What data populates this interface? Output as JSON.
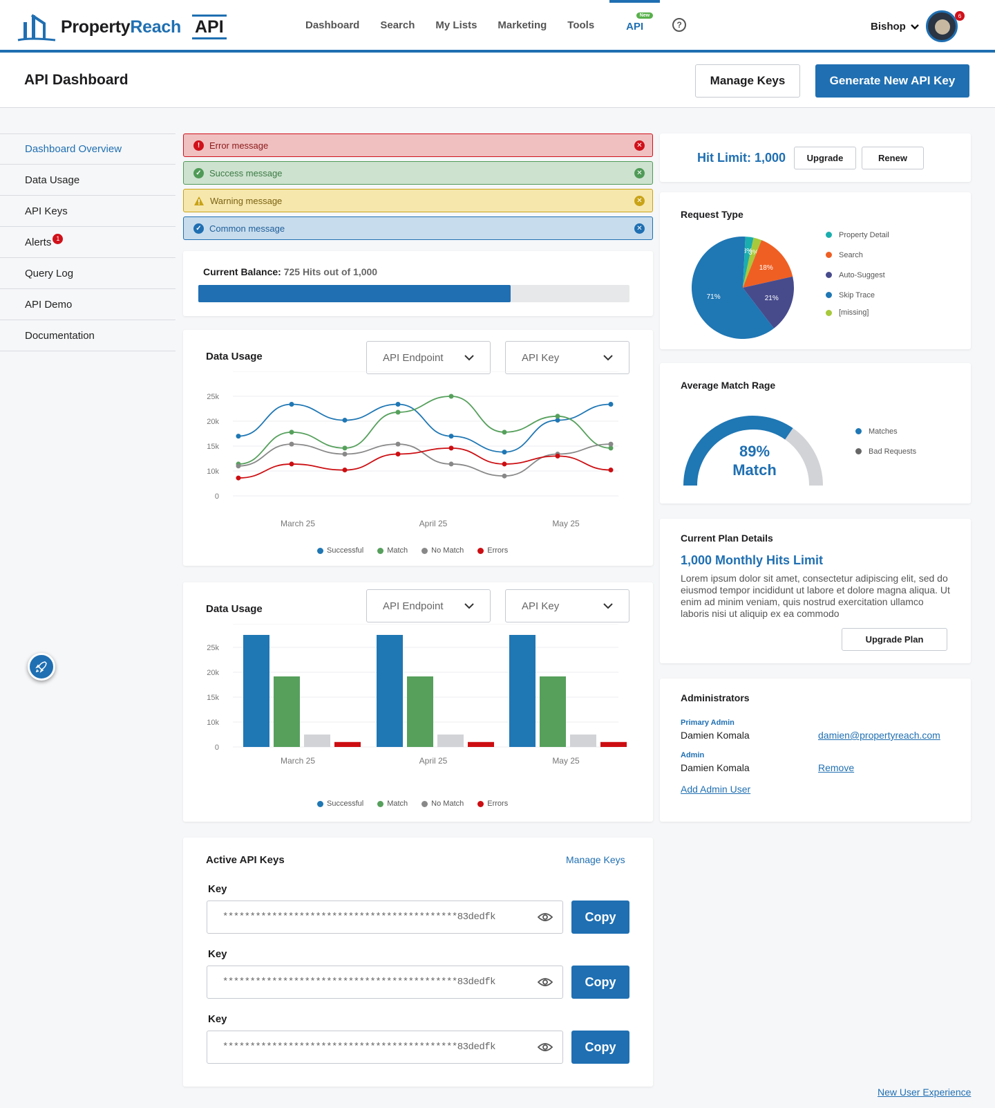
{
  "header": {
    "logo_property": "Property",
    "logo_reach": "Reach",
    "logo_api": "API",
    "nav": [
      "Dashboard",
      "Search",
      "My Lists",
      "Marketing",
      "Tools"
    ],
    "nav_api": "API",
    "nav_new_badge": "New",
    "help_glyph": "?",
    "user_name": "Bishop",
    "notification_count": "6"
  },
  "page": {
    "title": "API Dashboard",
    "manage_keys": "Manage Keys",
    "generate_key": "Generate New API Key"
  },
  "sidebar": {
    "items": [
      "Dashboard Overview",
      "Data Usage",
      "API Keys",
      "Alerts",
      "Query Log",
      "API Demo",
      "Documentation"
    ],
    "alerts_badge": "1"
  },
  "alerts": {
    "error": "Error message",
    "success": "Success message",
    "warning": "Warning message",
    "common": "Common message"
  },
  "balance": {
    "label": "Current Balance:",
    "value": "725 Hits out of 1,000",
    "fraction": 0.725
  },
  "usage_line": {
    "title": "Data Usage",
    "endpoint": "API Endpoint",
    "key": "API Key"
  },
  "usage_bar": {
    "title": "Data Usage",
    "endpoint": "API Endpoint",
    "key": "API Key"
  },
  "legend": [
    "Successful",
    "Match",
    "No Match",
    "Errors"
  ],
  "colors": {
    "primary": "#1f6fb2",
    "successful": "#1f77b4",
    "match": "#56a05c",
    "no_match": "#888888",
    "no_match_bar": "#d2d3d6",
    "errors": "#cc0e12"
  },
  "chart_data": [
    {
      "type": "line",
      "title": "Data Usage",
      "y_ticks": [
        "25k",
        "20k",
        "15k",
        "10k",
        "0"
      ],
      "x_ticks": [
        "March 25",
        "April 25",
        "May 25"
      ],
      "series": [
        {
          "name": "Successful",
          "values": [
            15000,
            23000,
            19000,
            23000,
            15000,
            11000,
            19000,
            23000
          ]
        },
        {
          "name": "Match",
          "values": [
            8000,
            16000,
            12000,
            21000,
            25000,
            16000,
            20000,
            12000
          ]
        },
        {
          "name": "No Match",
          "values": [
            7500,
            13000,
            10500,
            13000,
            8000,
            5000,
            10500,
            13000
          ]
        },
        {
          "name": "Errors",
          "values": [
            4500,
            8000,
            6500,
            10500,
            12000,
            8000,
            10000,
            6500
          ]
        }
      ]
    },
    {
      "type": "bar",
      "title": "Data Usage",
      "y_ticks": [
        "25k",
        "20k",
        "15k",
        "10k",
        "0"
      ],
      "categories": [
        "March 25",
        "April 25",
        "May 25"
      ],
      "series": [
        {
          "name": "Successful",
          "values": [
            27000,
            27000,
            27000
          ]
        },
        {
          "name": "Match",
          "values": [
            17000,
            17000,
            17000
          ]
        },
        {
          "name": "No Match",
          "values": [
            3000,
            3000,
            3000
          ]
        },
        {
          "name": "Errors",
          "values": [
            1200,
            1200,
            1200
          ]
        }
      ]
    },
    {
      "type": "pie",
      "title": "Request Type",
      "slices": [
        {
          "label": "Property Detail",
          "value": 3,
          "text": "3%",
          "color": "#1aaeae"
        },
        {
          "label": "Search",
          "value": 18,
          "text": "18%",
          "color": "#ef5f23"
        },
        {
          "label": "Auto-Suggest",
          "value": 21,
          "text": "21%",
          "color": "#474b8c"
        },
        {
          "label": "Skip Trace",
          "value": 71,
          "text": "71%",
          "color": "#1f77b4"
        },
        {
          "label": "[missing]",
          "value": 3,
          "text": "3%",
          "color": "#a7c93b"
        }
      ]
    },
    {
      "type": "gauge",
      "title": "Average Match Rage",
      "value": 89,
      "center_value": "89%",
      "center_label": "Match",
      "legend": [
        "Matches",
        "Bad Requests"
      ]
    }
  ],
  "hit_limit": {
    "label": "Hit Limit: 1,000",
    "upgrade": "Upgrade",
    "renew": "Renew"
  },
  "plan": {
    "title": "Current Plan Details",
    "name": "1,000 Monthly Hits Limit",
    "description": "Lorem ipsum dolor sit amet, consectetur adipiscing elit, sed do eiusmod tempor incididunt ut labore et dolore magna aliqua. Ut enim ad minim veniam, quis nostrud exercitation ullamco laboris nisi ut aliquip ex ea commodo",
    "upgrade": "Upgrade Plan"
  },
  "admins": {
    "title": "Administrators",
    "primary_role": "Primary Admin",
    "primary_name": "Damien Komala",
    "primary_email": "damien@propertyreach.com",
    "admin_role": "Admin",
    "admin_name": "Damien Komala",
    "remove": "Remove",
    "add": "Add Admin User"
  },
  "keys": {
    "title": "Active API Keys",
    "manage": "Manage Keys",
    "label": "Key",
    "masked": "*******************************************83dedfk",
    "copy": "Copy"
  },
  "footer_link": "New User Experience"
}
